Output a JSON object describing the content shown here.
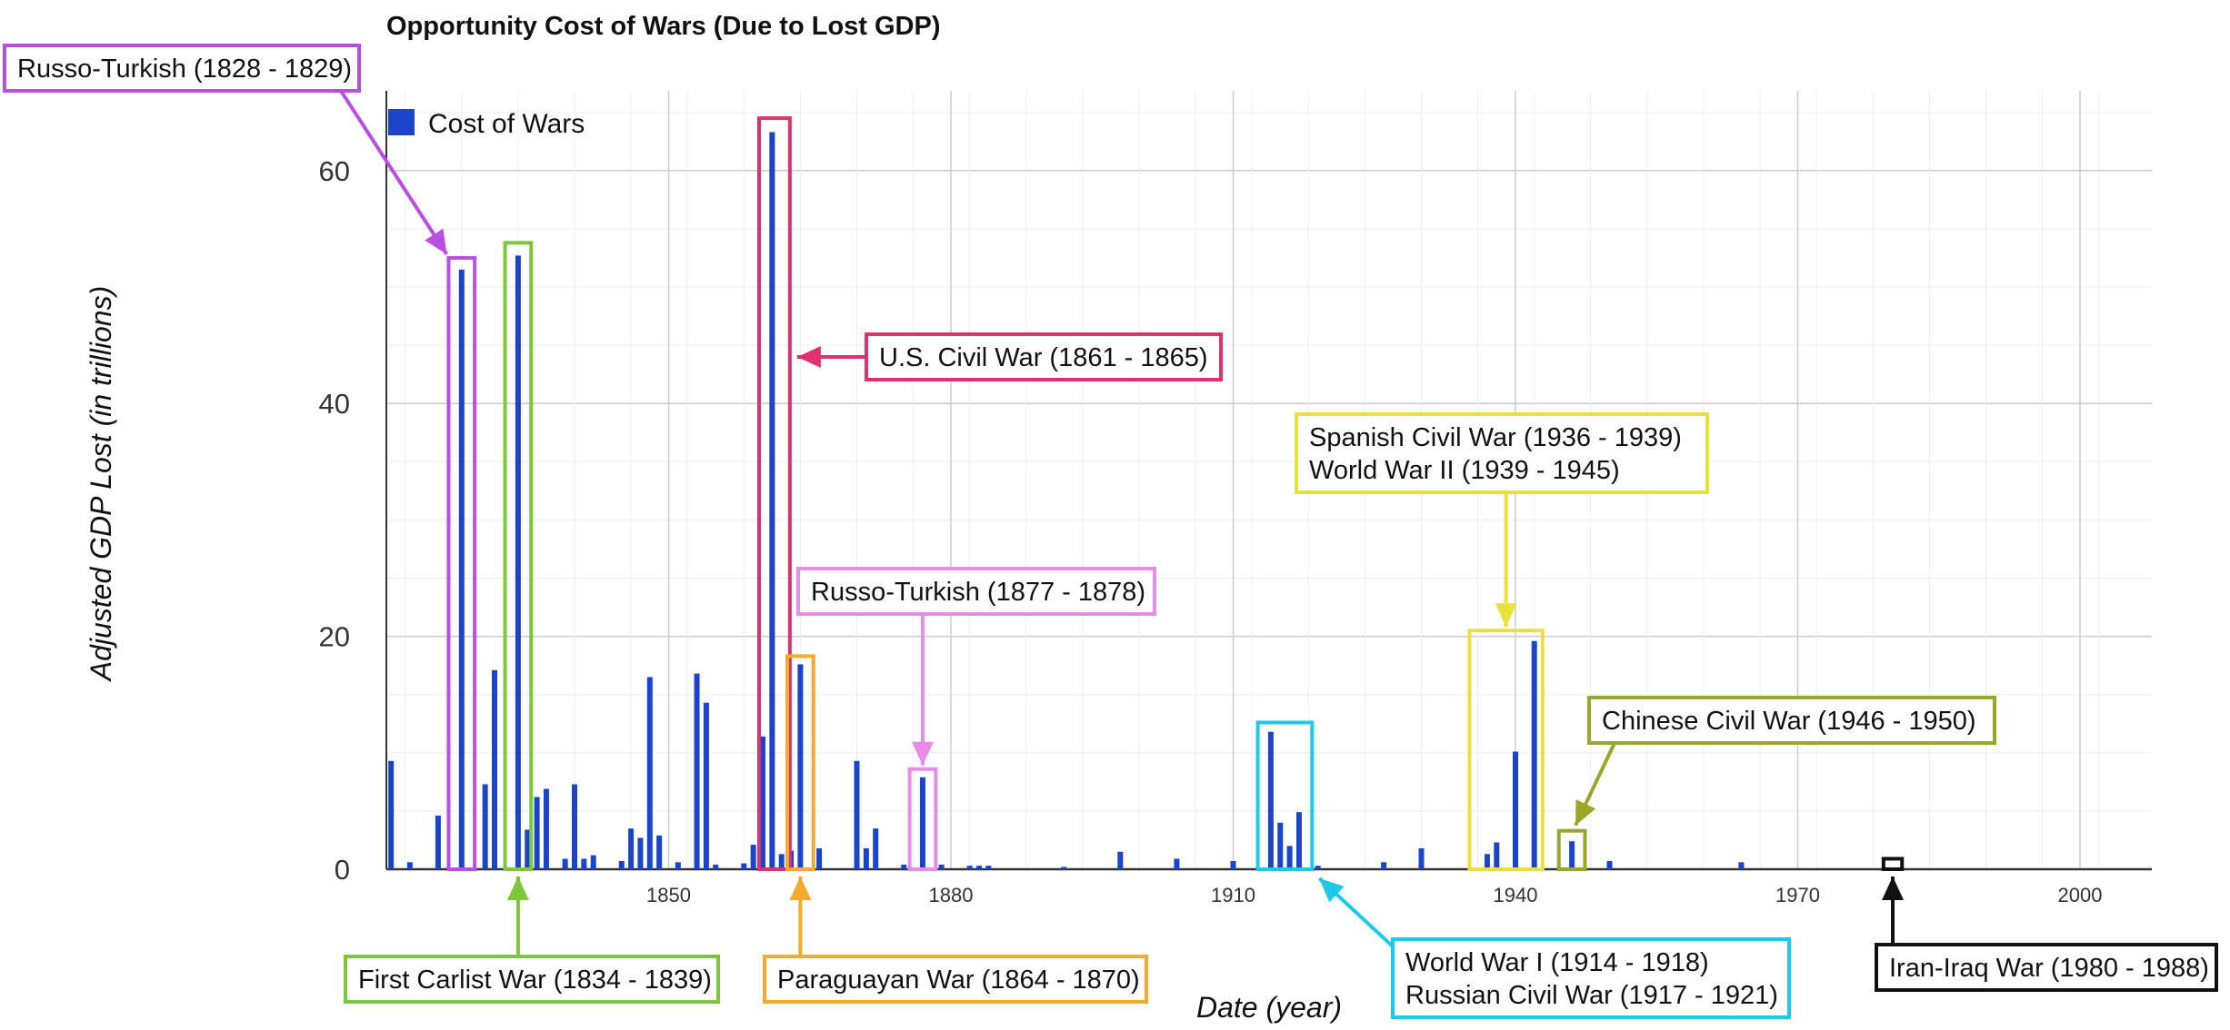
{
  "chart_data": {
    "type": "bar",
    "title": "Opportunity Cost of Wars (Due to Lost GDP)",
    "xlabel": "Date (year)",
    "ylabel": "Adjusted GDP Lost (in trillions)",
    "xlim": [
      1820,
      2008
    ],
    "ylim": [
      0,
      67
    ],
    "x_ticks": [
      1850,
      1880,
      1910,
      1940,
      1970,
      2000
    ],
    "y_ticks": [
      0,
      20,
      40,
      60
    ],
    "grid": true,
    "legend": {
      "position": "top-left",
      "entries": [
        "Cost of Wars"
      ]
    },
    "series": [
      {
        "name": "Cost of Wars",
        "color": "#1a44cc",
        "points": [
          {
            "x": 1820.5,
            "y": 9.3
          },
          {
            "x": 1822.5,
            "y": 0.6
          },
          {
            "x": 1825.5,
            "y": 4.6
          },
          {
            "x": 1828,
            "y": 51.5
          },
          {
            "x": 1830.5,
            "y": 7.3
          },
          {
            "x": 1831.5,
            "y": 17.1
          },
          {
            "x": 1834,
            "y": 52.7
          },
          {
            "x": 1835,
            "y": 3.4
          },
          {
            "x": 1836,
            "y": 6.2
          },
          {
            "x": 1837,
            "y": 6.9
          },
          {
            "x": 1839,
            "y": 0.9
          },
          {
            "x": 1840,
            "y": 7.3
          },
          {
            "x": 1841,
            "y": 0.9
          },
          {
            "x": 1842,
            "y": 1.2
          },
          {
            "x": 1845,
            "y": 0.7
          },
          {
            "x": 1846,
            "y": 3.5
          },
          {
            "x": 1847,
            "y": 2.7
          },
          {
            "x": 1848,
            "y": 16.5
          },
          {
            "x": 1849,
            "y": 2.9
          },
          {
            "x": 1851,
            "y": 0.6
          },
          {
            "x": 1853,
            "y": 16.8
          },
          {
            "x": 1854,
            "y": 14.3
          },
          {
            "x": 1855,
            "y": 0.4
          },
          {
            "x": 1858,
            "y": 0.5
          },
          {
            "x": 1859,
            "y": 2.1
          },
          {
            "x": 1860,
            "y": 11.4
          },
          {
            "x": 1861,
            "y": 63.3
          },
          {
            "x": 1862,
            "y": 1.3
          },
          {
            "x": 1863,
            "y": 1.6
          },
          {
            "x": 1864,
            "y": 17.6
          },
          {
            "x": 1866,
            "y": 1.8
          },
          {
            "x": 1870,
            "y": 9.3
          },
          {
            "x": 1871,
            "y": 1.8
          },
          {
            "x": 1872,
            "y": 3.5
          },
          {
            "x": 1875,
            "y": 0.4
          },
          {
            "x": 1877,
            "y": 7.9
          },
          {
            "x": 1879,
            "y": 0.4
          },
          {
            "x": 1882,
            "y": 0.3
          },
          {
            "x": 1883,
            "y": 0.3
          },
          {
            "x": 1884,
            "y": 0.3
          },
          {
            "x": 1892,
            "y": 0.2
          },
          {
            "x": 1898,
            "y": 1.5
          },
          {
            "x": 1904,
            "y": 0.9
          },
          {
            "x": 1910,
            "y": 0.7
          },
          {
            "x": 1914,
            "y": 11.8
          },
          {
            "x": 1915,
            "y": 4.0
          },
          {
            "x": 1916,
            "y": 2.0
          },
          {
            "x": 1917,
            "y": 4.9
          },
          {
            "x": 1919,
            "y": 0.3
          },
          {
            "x": 1926,
            "y": 0.6
          },
          {
            "x": 1930,
            "y": 1.8
          },
          {
            "x": 1937,
            "y": 1.3
          },
          {
            "x": 1938,
            "y": 2.3
          },
          {
            "x": 1940,
            "y": 10.1
          },
          {
            "x": 1942,
            "y": 19.6
          },
          {
            "x": 1946,
            "y": 2.4
          },
          {
            "x": 1950,
            "y": 0.7
          },
          {
            "x": 1964,
            "y": 0.6
          }
        ]
      }
    ],
    "annotations": [
      {
        "lines": [
          "Russo-Turkish (1828 - 1829)"
        ],
        "color": "#b84fe0",
        "years": [
          1827,
          1829
        ],
        "ymax": 52.5,
        "arrow": "to-top"
      },
      {
        "lines": [
          "First Carlist War (1834 - 1839)"
        ],
        "color": "#7cc73a",
        "years": [
          1833,
          1835
        ],
        "ymax": 53.8,
        "arrow": "from-below"
      },
      {
        "lines": [
          "U.S. Civil War (1861 - 1865)"
        ],
        "color": "#e0306e",
        "years": [
          1860,
          1862.5
        ],
        "ymax": 64.5,
        "arrow": "to-side"
      },
      {
        "lines": [
          "Paraguayan War (1864 - 1870)"
        ],
        "color": "#f4a92f",
        "years": [
          1863,
          1865
        ],
        "ymax": 18.3,
        "arrow": "from-below"
      },
      {
        "lines": [
          "Russo-Turkish (1877 - 1878)"
        ],
        "color": "#e78de9",
        "years": [
          1876,
          1878
        ],
        "ymax": 8.6,
        "arrow": "from-above"
      },
      {
        "lines": [
          "World War I (1914 - 1918)",
          "Russian Civil War (1917 - 1921)"
        ],
        "color": "#1ec9e8",
        "years": [
          1913,
          1918
        ],
        "ymax": 12.6,
        "arrow": "from-below-right"
      },
      {
        "lines": [
          "Spanish Civil War (1936 - 1939)",
          "World War II (1939 - 1945)"
        ],
        "color": "#eae23a",
        "years": [
          1935.5,
          1942.5
        ],
        "ymax": 20.5,
        "arrow": "from-above"
      },
      {
        "lines": [
          "Chinese Civil War (1946 - 1950)"
        ],
        "color": "#9aa82a",
        "years": [
          1945,
          1947
        ],
        "ymax": 3.3,
        "arrow": "from-above-right"
      },
      {
        "lines": [
          "Iran-Iraq War (1980 - 1988)"
        ],
        "color": "#111111",
        "years": [
          1979.5,
          1980.7
        ],
        "ymax": 0.9,
        "arrow": "from-below"
      }
    ]
  }
}
